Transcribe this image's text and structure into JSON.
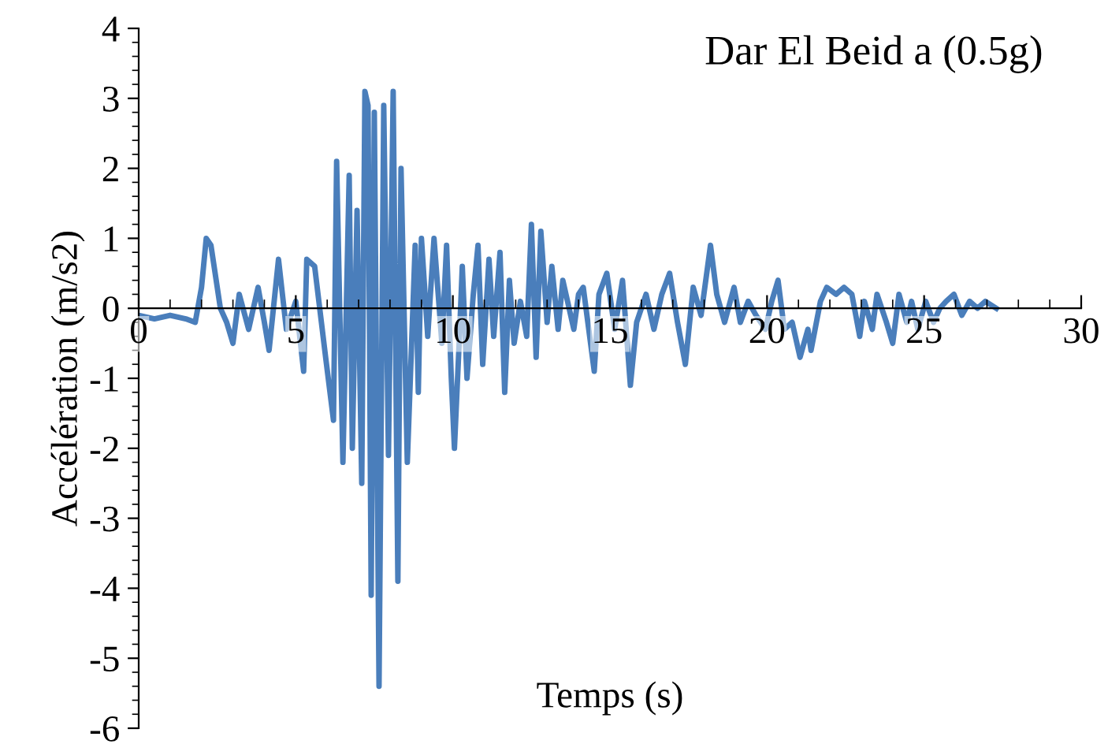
{
  "chart_data": {
    "type": "line",
    "title": "Dar El Beid a (0.5g)",
    "xlabel": "Temps (s)",
    "ylabel": "Accélération (m/s2)",
    "xlim": [
      0,
      30
    ],
    "xticks": [
      0,
      5,
      10,
      15,
      20,
      25,
      30
    ],
    "ylim": [
      -6,
      4
    ],
    "yticks": [
      -6,
      -5,
      -4,
      -3,
      -2,
      -1,
      0,
      1,
      2,
      3,
      4
    ],
    "grid": false,
    "marker": "none",
    "line_style": "solid",
    "series": [
      {
        "color": "#4a7ebb",
        "x": [
          0,
          0.5,
          1.0,
          1.5,
          1.8,
          2.0,
          2.15,
          2.3,
          2.6,
          2.8,
          3.0,
          3.2,
          3.5,
          3.8,
          4.0,
          4.15,
          4.45,
          4.7,
          5.0,
          5.25,
          5.35,
          5.6,
          5.95,
          6.2,
          6.3,
          6.5,
          6.7,
          6.8,
          6.95,
          7.1,
          7.2,
          7.3,
          7.4,
          7.5,
          7.65,
          7.8,
          7.95,
          8.1,
          8.25,
          8.35,
          8.55,
          8.8,
          8.9,
          9.0,
          9.2,
          9.4,
          9.65,
          9.8,
          9.95,
          10.05,
          10.2,
          10.3,
          10.45,
          10.65,
          10.8,
          10.95,
          11.15,
          11.3,
          11.5,
          11.65,
          11.8,
          11.95,
          12.15,
          12.35,
          12.5,
          12.65,
          12.8,
          13.0,
          13.15,
          13.35,
          13.5,
          13.65,
          13.85,
          14.0,
          14.15,
          14.5,
          14.65,
          14.9,
          15.15,
          15.4,
          15.65,
          15.85,
          16.15,
          16.4,
          16.65,
          16.9,
          17.15,
          17.4,
          17.65,
          17.9,
          18.2,
          18.4,
          18.65,
          18.95,
          19.15,
          19.4,
          19.65,
          19.95,
          20.15,
          20.35,
          20.55,
          20.8,
          21.05,
          21.3,
          21.4,
          21.7,
          21.9,
          22.2,
          22.45,
          22.7,
          22.95,
          23.1,
          23.35,
          23.5,
          23.8,
          24.0,
          24.2,
          24.45,
          24.6,
          24.8,
          25.05,
          25.3,
          25.5,
          25.7,
          25.95,
          26.2,
          26.45,
          26.7,
          26.95,
          27.3
        ],
        "values": [
          -0.1,
          -0.15,
          -0.1,
          -0.15,
          -0.2,
          0.3,
          1.0,
          0.9,
          0.0,
          -0.2,
          -0.5,
          0.2,
          -0.3,
          0.3,
          -0.2,
          -0.6,
          0.7,
          -0.3,
          0.1,
          -0.9,
          0.7,
          0.6,
          -0.7,
          -1.6,
          2.1,
          -2.2,
          1.9,
          -2.0,
          1.4,
          -2.5,
          3.1,
          2.9,
          -4.1,
          2.8,
          -5.4,
          2.9,
          -2.1,
          3.1,
          -3.9,
          2.0,
          -2.2,
          0.9,
          -1.2,
          1.0,
          -0.4,
          1.0,
          -0.5,
          0.9,
          -1.0,
          -2.0,
          -0.5,
          0.6,
          -1.0,
          0.2,
          0.9,
          -0.8,
          0.7,
          -0.4,
          0.8,
          -1.2,
          0.4,
          -0.5,
          0.1,
          -0.4,
          1.2,
          -0.7,
          1.1,
          -0.2,
          0.6,
          -0.3,
          0.4,
          0.1,
          -0.3,
          0.2,
          0.3,
          -0.9,
          0.2,
          0.5,
          -0.3,
          0.4,
          -1.1,
          -0.2,
          0.2,
          -0.3,
          0.2,
          0.5,
          -0.2,
          -0.8,
          0.3,
          -0.1,
          0.9,
          0.2,
          -0.2,
          0.3,
          -0.2,
          0.1,
          -0.1,
          -0.3,
          0.1,
          0.4,
          -0.3,
          -0.2,
          -0.7,
          -0.3,
          -0.6,
          0.1,
          0.3,
          0.2,
          0.3,
          0.2,
          -0.4,
          0.1,
          -0.3,
          0.2,
          -0.2,
          -0.5,
          0.2,
          -0.2,
          0.1,
          -0.3,
          0.1,
          -0.2,
          0.0,
          0.1,
          0.2,
          -0.1,
          0.1,
          0.0,
          0.1,
          0.0
        ]
      }
    ]
  }
}
